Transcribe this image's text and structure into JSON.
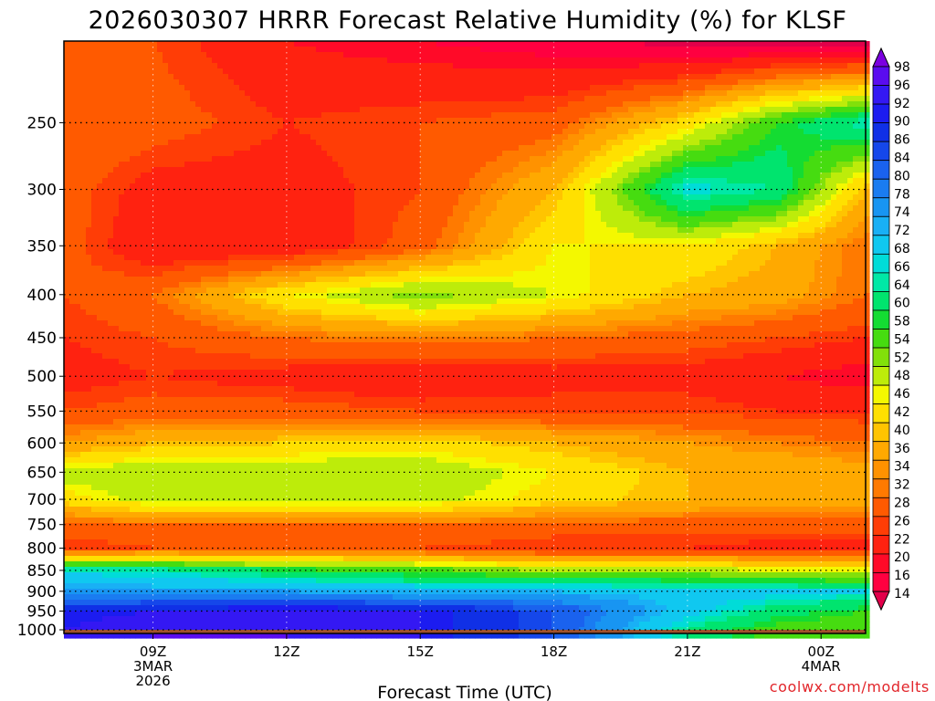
{
  "chart_data": {
    "type": "heatmap",
    "title": "2026030307 HRRR Forecast Relative Humidity (%) for KLSF",
    "xlabel": "Forecast Time (UTC)",
    "ylabel": "",
    "x_ticks": [
      {
        "label": "09Z",
        "sub1": "3MAR",
        "sub2": "2026",
        "hour": 9
      },
      {
        "label": "12Z",
        "sub1": "",
        "sub2": "",
        "hour": 12
      },
      {
        "label": "15Z",
        "sub1": "",
        "sub2": "",
        "hour": 15
      },
      {
        "label": "18Z",
        "sub1": "",
        "sub2": "",
        "hour": 18
      },
      {
        "label": "21Z",
        "sub1": "",
        "sub2": "",
        "hour": 21
      },
      {
        "label": "00Z",
        "sub1": "4MAR",
        "sub2": "",
        "hour": 24
      }
    ],
    "xlim": [
      7,
      25
    ],
    "y_ticks": [
      "250",
      "300",
      "350",
      "400",
      "450",
      "500",
      "550",
      "600",
      "650",
      "700",
      "750",
      "800",
      "850",
      "900",
      "950",
      "1000"
    ],
    "y_values": [
      250,
      300,
      350,
      400,
      450,
      500,
      550,
      600,
      650,
      700,
      750,
      800,
      850,
      900,
      950,
      1000
    ],
    "ylim": [
      200,
      1010
    ],
    "yscale": "log-pressure (inverted)",
    "hours": [
      7,
      9,
      12,
      15,
      18,
      21,
      23,
      25
    ],
    "levels": [
      200,
      250,
      300,
      350,
      400,
      450,
      500,
      550,
      600,
      650,
      700,
      750,
      800,
      850,
      900,
      950,
      1000
    ],
    "rh": [
      [
        30,
        28,
        22,
        20,
        18,
        14,
        14,
        14
      ],
      [
        32,
        30,
        26,
        28,
        30,
        44,
        58,
        66
      ],
      [
        30,
        24,
        24,
        28,
        40,
        68,
        64,
        40
      ],
      [
        30,
        22,
        22,
        30,
        46,
        46,
        40,
        32
      ],
      [
        28,
        32,
        46,
        54,
        48,
        40,
        38,
        32
      ],
      [
        26,
        28,
        32,
        34,
        32,
        30,
        28,
        26
      ],
      [
        24,
        26,
        24,
        22,
        24,
        24,
        22,
        20
      ],
      [
        28,
        30,
        30,
        28,
        28,
        28,
        26,
        26
      ],
      [
        36,
        40,
        42,
        44,
        40,
        36,
        34,
        32
      ],
      [
        50,
        52,
        52,
        52,
        46,
        40,
        40,
        38
      ],
      [
        44,
        50,
        50,
        50,
        44,
        40,
        38,
        38
      ],
      [
        30,
        32,
        32,
        32,
        30,
        30,
        30,
        30
      ],
      [
        26,
        28,
        28,
        28,
        26,
        26,
        24,
        24
      ],
      [
        66,
        66,
        60,
        56,
        52,
        50,
        48,
        48
      ],
      [
        76,
        74,
        74,
        72,
        72,
        70,
        70,
        68
      ],
      [
        90,
        92,
        94,
        92,
        84,
        70,
        62,
        58
      ],
      [
        92,
        96,
        96,
        92,
        84,
        64,
        56,
        54
      ]
    ],
    "colorbar_labels": [
      "98",
      "96",
      "92",
      "90",
      "86",
      "84",
      "80",
      "78",
      "74",
      "72",
      "68",
      "66",
      "64",
      "60",
      "58",
      "54",
      "52",
      "48",
      "46",
      "42",
      "40",
      "36",
      "34",
      "32",
      "28",
      "26",
      "22",
      "20",
      "16",
      "14"
    ],
    "colors": [
      "#7b00e0",
      "#5a0cef",
      "#3418f3",
      "#1c1cf0",
      "#1030e6",
      "#1547ea",
      "#1a62ee",
      "#1a7cf1",
      "#1895f2",
      "#19b0f5",
      "#10c8f0",
      "#00dcd8",
      "#00e8a6",
      "#00e46e",
      "#14dc32",
      "#46dc10",
      "#82e00a",
      "#bdec0a",
      "#f4f800",
      "#ffe000",
      "#ffc400",
      "#ffa900",
      "#ff9200",
      "#ff7a00",
      "#ff5a00",
      "#ff3d06",
      "#ff2210",
      "#ff0a28",
      "#ff0040",
      "#e2004a"
    ],
    "grid": true,
    "legend": "colorbar-right",
    "annotation": "coolwx.com/modelts"
  }
}
